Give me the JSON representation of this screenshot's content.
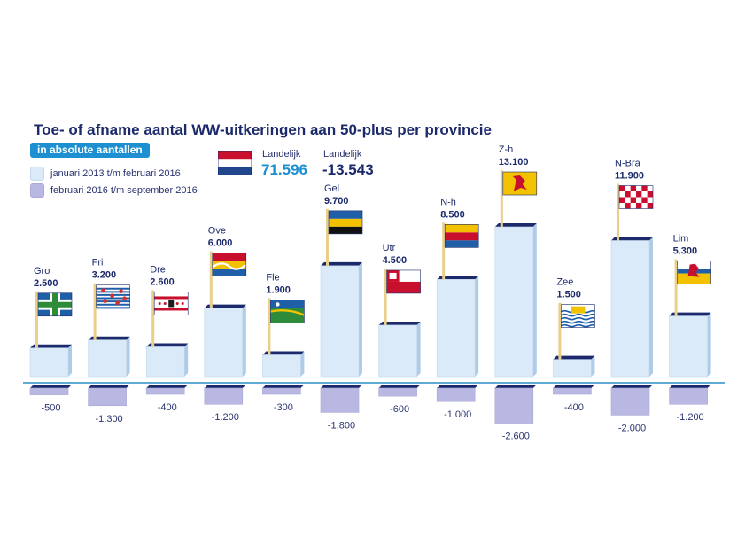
{
  "title": "Toe- of afname aantal WW-uitkeringen aan 50-plus per provincie",
  "subtitle": "in absolute aantallen",
  "legend": [
    {
      "label": "januari 2013 t/m februari 2016",
      "color": "#dbeaf8"
    },
    {
      "label": "februari 2016 t/m september 2016",
      "color": "#b9b8e3"
    }
  ],
  "national": {
    "label_increase": "Landelijk",
    "value_increase": "71.596",
    "label_change": "Landelijk",
    "value_change": "-13.543",
    "flag": "netherlands-flag"
  },
  "colors": {
    "title": "#1c2a6b",
    "accent_blue": "#1e8fd0",
    "bar_top_face": "#1c2a6b",
    "bar_pos_fill": "#dbeaf8",
    "bar_neg_fill": "#b9b8e3",
    "axis_line": "#2b8fc8"
  },
  "chart_data": {
    "type": "bar",
    "title": "Toe- of afname aantal WW-uitkeringen aan 50-plus per provincie",
    "subtitle": "in absolute aantallen",
    "categories": [
      "Gro",
      "Fri",
      "Dre",
      "Ove",
      "Fle",
      "Gel",
      "Utr",
      "N-h",
      "Z-h",
      "Zee",
      "N-Bra",
      "Lim"
    ],
    "series": [
      {
        "name": "januari 2013 t/m februari 2016",
        "values": [
          2500,
          3200,
          2600,
          6000,
          1900,
          9700,
          4500,
          8500,
          13100,
          1500,
          11900,
          5300
        ],
        "labels": [
          "2.500",
          "3.200",
          "2.600",
          "6.000",
          "1.900",
          "9.700",
          "4.500",
          "8.500",
          "13.100",
          "1.500",
          "11.900",
          "5.300"
        ]
      },
      {
        "name": "februari 2016 t/m september 2016",
        "values": [
          -500,
          -1300,
          -400,
          -1200,
          -300,
          -1800,
          -600,
          -1000,
          -2600,
          -400,
          -2000,
          -1200
        ],
        "labels": [
          "-500",
          "-1.300",
          "-400",
          "-1.200",
          "-300",
          "-1.800",
          "-600",
          "-1.000",
          "-2.600",
          "-400",
          "-2.000",
          "-1.200"
        ]
      }
    ],
    "flags": [
      "groningen-flag",
      "friesland-flag",
      "drenthe-flag",
      "overijssel-flag",
      "flevoland-flag",
      "gelderland-flag",
      "utrecht-flag",
      "noord-holland-flag",
      "zuid-holland-flag",
      "zeeland-flag",
      "noord-brabant-flag",
      "limburg-flag"
    ],
    "legend_position": "top-left",
    "grid": false
  }
}
